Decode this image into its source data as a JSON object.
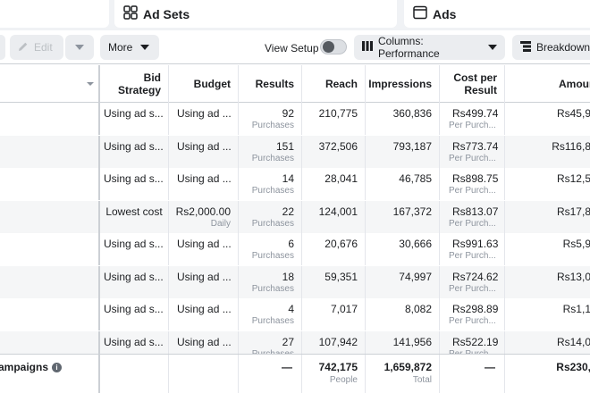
{
  "tabs": {
    "ad_sets": "Ad Sets",
    "ads": "Ads"
  },
  "toolbar": {
    "edit": "Edit",
    "more": "More",
    "view_setup": "View Setup",
    "columns": "Columns: Performance",
    "breakdown": "Breakdown"
  },
  "headers": {
    "bid_strategy": "Bid Strategy",
    "budget": "Budget",
    "results": "Results",
    "reach": "Reach",
    "impressions": "Impressions",
    "cost_per_result_line1": "Cost per",
    "cost_per_result_line2": "Result",
    "amount": "Amoun"
  },
  "rows": [
    {
      "bid": "Using ad s...",
      "budget": "Using ad ...",
      "budget_sub": "",
      "results": "92",
      "results_sub": "Purchases",
      "reach": "210,775",
      "impressions": "360,836",
      "cpr": "Rs499.74",
      "cpr_sub": "Per Purch...",
      "amount": "Rs45,9"
    },
    {
      "bid": "Using ad s...",
      "budget": "Using ad ...",
      "budget_sub": "",
      "results": "151",
      "results_sub": "Purchases",
      "reach": "372,506",
      "impressions": "793,187",
      "cpr": "Rs773.74",
      "cpr_sub": "Per Purch...",
      "amount": "Rs116,8"
    },
    {
      "bid": "Using ad s...",
      "budget": "Using ad ...",
      "budget_sub": "",
      "results": "14",
      "results_sub": "Purchases",
      "reach": "28,041",
      "impressions": "46,785",
      "cpr": "Rs898.75",
      "cpr_sub": "Per Purch...",
      "amount": "Rs12,5"
    },
    {
      "bid": "Lowest cost",
      "budget": "Rs2,000.00",
      "budget_sub": "Daily",
      "results": "22",
      "results_sub": "Purchases",
      "reach": "124,001",
      "impressions": "167,372",
      "cpr": "Rs813.07",
      "cpr_sub": "Per Purch...",
      "amount": "Rs17,8"
    },
    {
      "bid": "Using ad s...",
      "budget": "Using ad ...",
      "budget_sub": "",
      "results": "6",
      "results_sub": "Purchases",
      "reach": "20,676",
      "impressions": "30,666",
      "cpr": "Rs991.63",
      "cpr_sub": "Per Purch...",
      "amount": "Rs5,9"
    },
    {
      "bid": "Using ad s...",
      "budget": "Using ad ...",
      "budget_sub": "",
      "results": "18",
      "results_sub": "Purchases",
      "reach": "59,351",
      "impressions": "74,997",
      "cpr": "Rs724.62",
      "cpr_sub": "Per Purch...",
      "amount": "Rs13,0"
    },
    {
      "bid": "Using ad s...",
      "budget": "Using ad ...",
      "budget_sub": "",
      "results": "4",
      "results_sub": "Purchases",
      "reach": "7,017",
      "impressions": "8,082",
      "cpr": "Rs298.89",
      "cpr_sub": "Per Purch...",
      "amount": "Rs1,1"
    },
    {
      "bid": "Using ad s...",
      "budget": "Using ad ...",
      "budget_sub": "",
      "results": "27",
      "results_sub": "Purchases",
      "reach": "107,942",
      "impressions": "141,956",
      "cpr": "Rs522.19",
      "cpr_sub": "Per Purch...",
      "amount": "Rs14,0"
    }
  ],
  "footer": {
    "label": "ampaigns",
    "info_glyph": "i",
    "results": "—",
    "reach": "742,175",
    "reach_sub": "People",
    "impressions": "1,659,872",
    "impressions_sub": "Total",
    "cpr": "—",
    "amount": "Rs230,"
  }
}
